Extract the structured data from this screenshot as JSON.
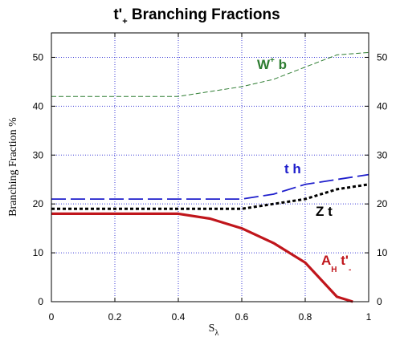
{
  "chart_data": {
    "type": "line",
    "title": "t'",
    "title_subscript": "+",
    "title_rest": " Branching Fractions",
    "xlabel": "S",
    "xlabel_subscript": "λ",
    "ylabel": "Branching Fraction %",
    "xlim": [
      0,
      1
    ],
    "ylim": [
      0,
      55
    ],
    "xticks": [
      0,
      0.2,
      0.4,
      0.6,
      0.8,
      1
    ],
    "xtick_labels": [
      "0",
      "0.2",
      "0.4",
      "0.6",
      "0.8",
      "1"
    ],
    "yticks": [
      0,
      10,
      20,
      30,
      40,
      50
    ],
    "ytick_labels": [
      "0",
      "10",
      "20",
      "30",
      "40",
      "50"
    ],
    "grid": true,
    "series": [
      {
        "name": "W+ b",
        "label": "W",
        "label_sup": "+",
        "label_rest": " b",
        "color": "#2e7d32",
        "style": "dashed-thin",
        "x": [
          0,
          0.1,
          0.2,
          0.3,
          0.4,
          0.5,
          0.6,
          0.7,
          0.8,
          0.9,
          1.0
        ],
        "y": [
          42,
          42,
          42,
          42,
          42,
          43,
          44,
          45.5,
          48,
          50.5,
          51
        ]
      },
      {
        "name": "t h",
        "label": "t h",
        "color": "#1f1fcc",
        "style": "dashed-long",
        "x": [
          0,
          0.1,
          0.2,
          0.3,
          0.4,
          0.5,
          0.6,
          0.7,
          0.8,
          0.9,
          1.0
        ],
        "y": [
          21,
          21,
          21,
          21,
          21,
          21,
          21,
          22,
          24,
          25,
          26
        ]
      },
      {
        "name": "Z t",
        "label": "Z t",
        "color": "#000000",
        "style": "dashed-short",
        "x": [
          0,
          0.1,
          0.2,
          0.3,
          0.4,
          0.5,
          0.6,
          0.7,
          0.8,
          0.9,
          1.0
        ],
        "y": [
          19,
          19,
          19,
          19,
          19,
          19,
          19,
          20,
          21,
          23,
          24
        ]
      },
      {
        "name": "A_H t'_-",
        "label": "A",
        "label_sub": "H",
        "label_rest": " t'",
        "label_sub2": "-",
        "color": "#c0151b",
        "style": "solid",
        "x": [
          0,
          0.1,
          0.2,
          0.3,
          0.4,
          0.5,
          0.6,
          0.7,
          0.8,
          0.9,
          0.95
        ],
        "y": [
          18,
          18,
          18,
          18,
          18,
          17,
          15,
          12,
          8,
          1,
          0
        ]
      }
    ]
  }
}
